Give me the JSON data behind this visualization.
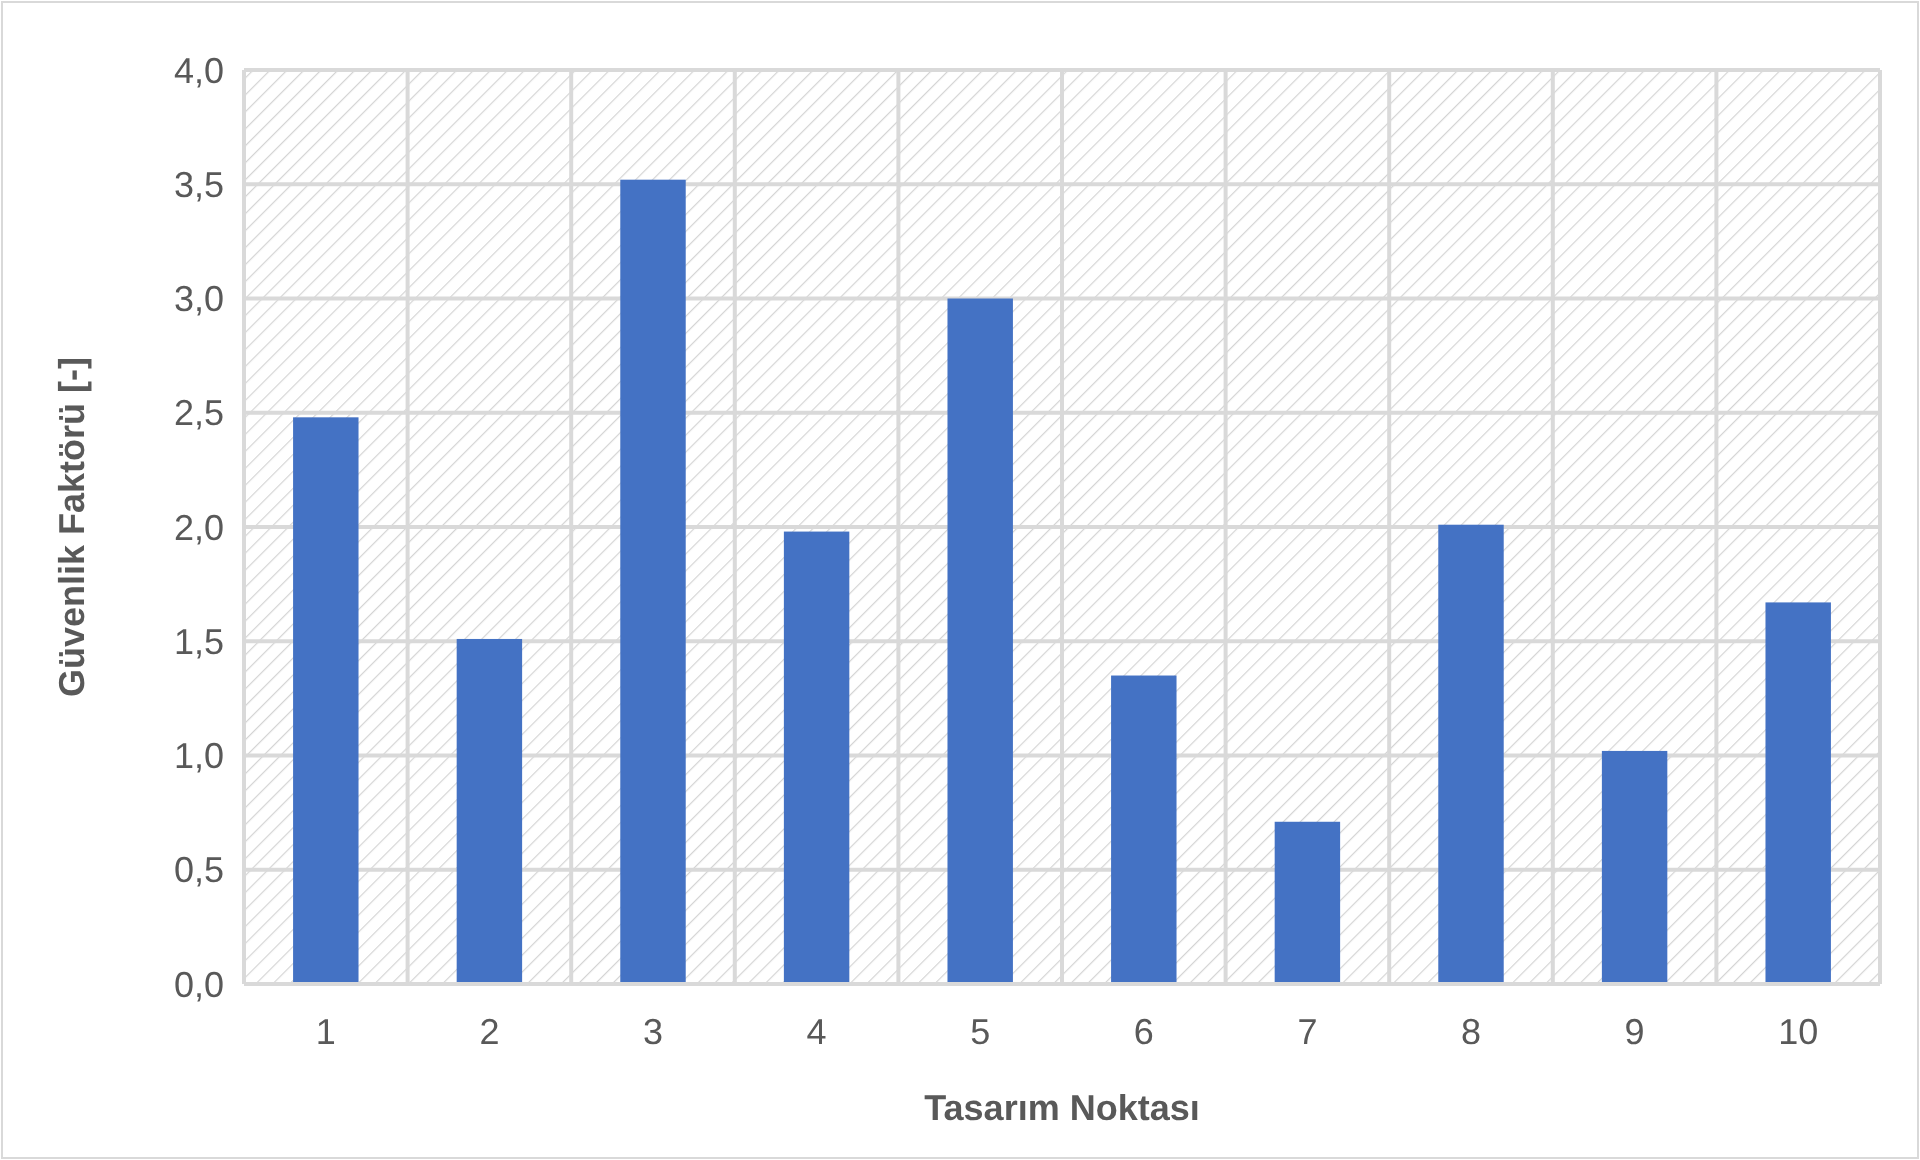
{
  "chart_data": {
    "type": "bar",
    "xlabel": "Tasarım Noktası",
    "ylabel": "Güvenlik Faktörü [-]",
    "categories": [
      "1",
      "2",
      "3",
      "4",
      "5",
      "6",
      "7",
      "8",
      "9",
      "10"
    ],
    "values": [
      2.48,
      1.51,
      3.52,
      1.98,
      3.0,
      1.35,
      0.71,
      2.01,
      1.02,
      1.67
    ],
    "color": "#4472c4",
    "ylim": [
      0,
      4
    ],
    "yticks": [
      {
        "value": 0,
        "label": "0,0"
      },
      {
        "value": 0.5,
        "label": "0,5"
      },
      {
        "value": 1,
        "label": "1,0"
      },
      {
        "value": 1.5,
        "label": "1,5"
      },
      {
        "value": 2,
        "label": "2,0"
      },
      {
        "value": 2.5,
        "label": "2,5"
      },
      {
        "value": 3,
        "label": "3,0"
      },
      {
        "value": 3.5,
        "label": "3,5"
      },
      {
        "value": 4,
        "label": "4,0"
      }
    ],
    "grid": true
  }
}
